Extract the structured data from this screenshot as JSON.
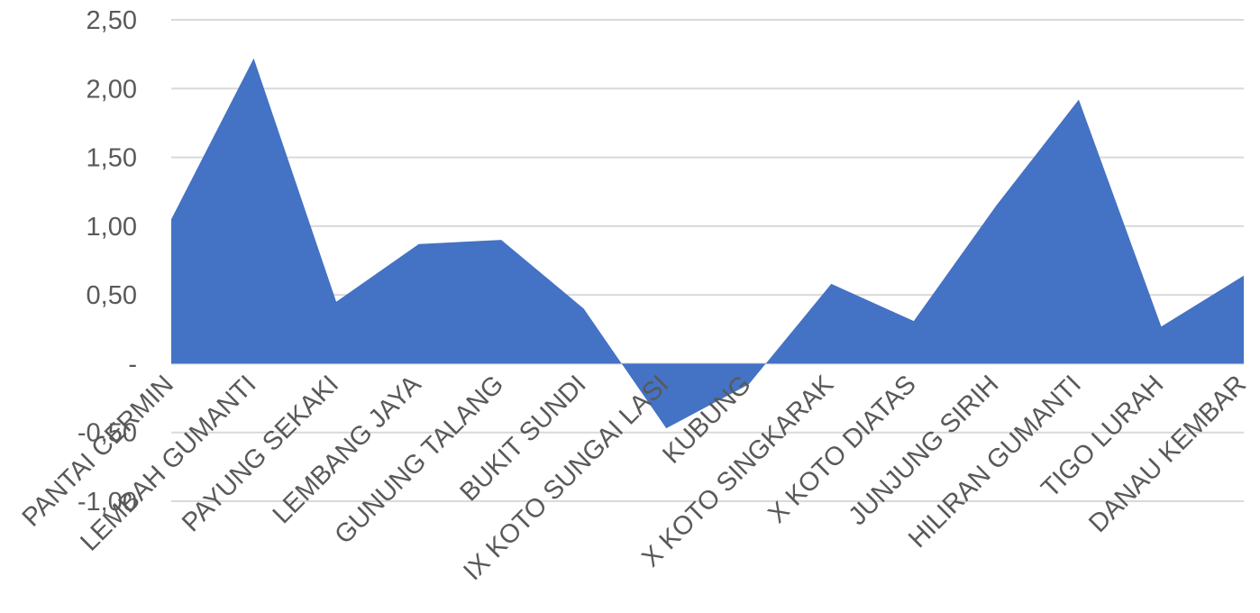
{
  "chart_data": {
    "type": "area",
    "categories": [
      "PANTAI CERMIN",
      "LEMBAH GUMANTI",
      "PAYUNG SEKAKI",
      "LEMBANG JAYA",
      "GUNUNG TALANG",
      "BUKIT SUNDI",
      "IX KOTO SUNGAI LASI",
      "KUBUNG",
      "X KOTO SINGKARAK",
      "X KOTO DIATAS",
      "JUNJUNG SIRIH",
      "HILIRAN GUMANTI",
      "TIGO LURAH",
      "DANAU KEMBAR"
    ],
    "values": [
      1.05,
      2.22,
      0.45,
      0.87,
      0.9,
      0.4,
      -0.47,
      -0.15,
      0.58,
      0.31,
      1.15,
      1.92,
      0.27,
      0.64
    ],
    "ylim": [
      -1.0,
      2.5
    ],
    "yticks": [
      {
        "value": 2.5,
        "label": "2,50"
      },
      {
        "value": 2.0,
        "label": "2,00"
      },
      {
        "value": 1.5,
        "label": "1,50"
      },
      {
        "value": 1.0,
        "label": "1,00"
      },
      {
        "value": 0.5,
        "label": "0,50"
      },
      {
        "value": 0.0,
        "label": "-"
      },
      {
        "value": -0.5,
        "label": "-0,50"
      },
      {
        "value": -1.0,
        "label": "-1,00"
      }
    ],
    "grid": true,
    "fill_color": "#4472C4",
    "grid_color": "#D9D9D9"
  }
}
